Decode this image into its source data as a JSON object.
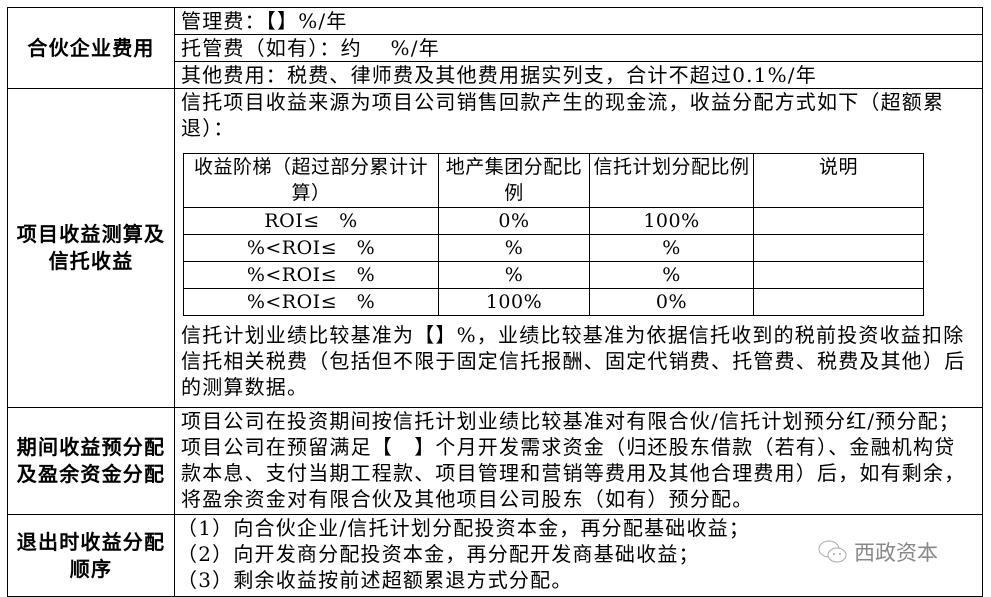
{
  "rows": [
    {
      "label": "合伙企业费用",
      "items": [
        "管理费：【】%/年",
        "托管费（如有）：约　 %/年",
        "其他费用：税费、律师费及其他费用据实列支，合计不超过0.1%/年"
      ]
    },
    {
      "label": "项目收益测算及信托收益",
      "intro": "信托项目收益来源为项目公司销售回款产生的现金流，收益分配方式如下（超额累退）：",
      "table": {
        "headers": [
          "收益阶梯（超过部分累计计算）",
          "地产集团分配比例",
          "信托计划分配比例",
          "说明"
        ],
        "rows": [
          [
            "ROI≤　%",
            "0%",
            "100%",
            ""
          ],
          [
            "%<ROI≤　%",
            "%",
            "%",
            ""
          ],
          [
            "%<ROI≤　%",
            "%",
            "%",
            ""
          ],
          [
            "%<ROI≤　%",
            "100%",
            "0%",
            ""
          ]
        ]
      },
      "note": "信托计划业绩比较基准为【】%，业绩比较基准为依据信托收到的税前投资收益扣除信托相关税费（包括但不限于固定信托报酬、固定代销费、托管费、税费及其他）后的测算数据。"
    },
    {
      "label": "期间收益预分配及盈余资金分配",
      "text": "项目公司在投资期间按信托计划业绩比较基准对有限合伙/信托计划预分红/预分配；项目公司在预留满足【　】个月开发需求资金（归还股东借款（若有）、金融机构贷款本息、支付当期工程款、项目管理和营销等费用及其他合理费用）后，如有剩余，将盈余资金对有限合伙及其他项目公司股东（如有）预分配。"
    },
    {
      "label": "退出时收益分配顺序",
      "items": [
        "（1）向合伙企业/信托计划分配投资本金，再分配基础收益；",
        "（2）向开发商分配投资本金，再分配开发商基础收益；",
        "（3）剩余收益按前述超额累退方式分配。"
      ]
    }
  ],
  "watermark": {
    "icon": "wechat-icon",
    "text": "西政资本"
  }
}
